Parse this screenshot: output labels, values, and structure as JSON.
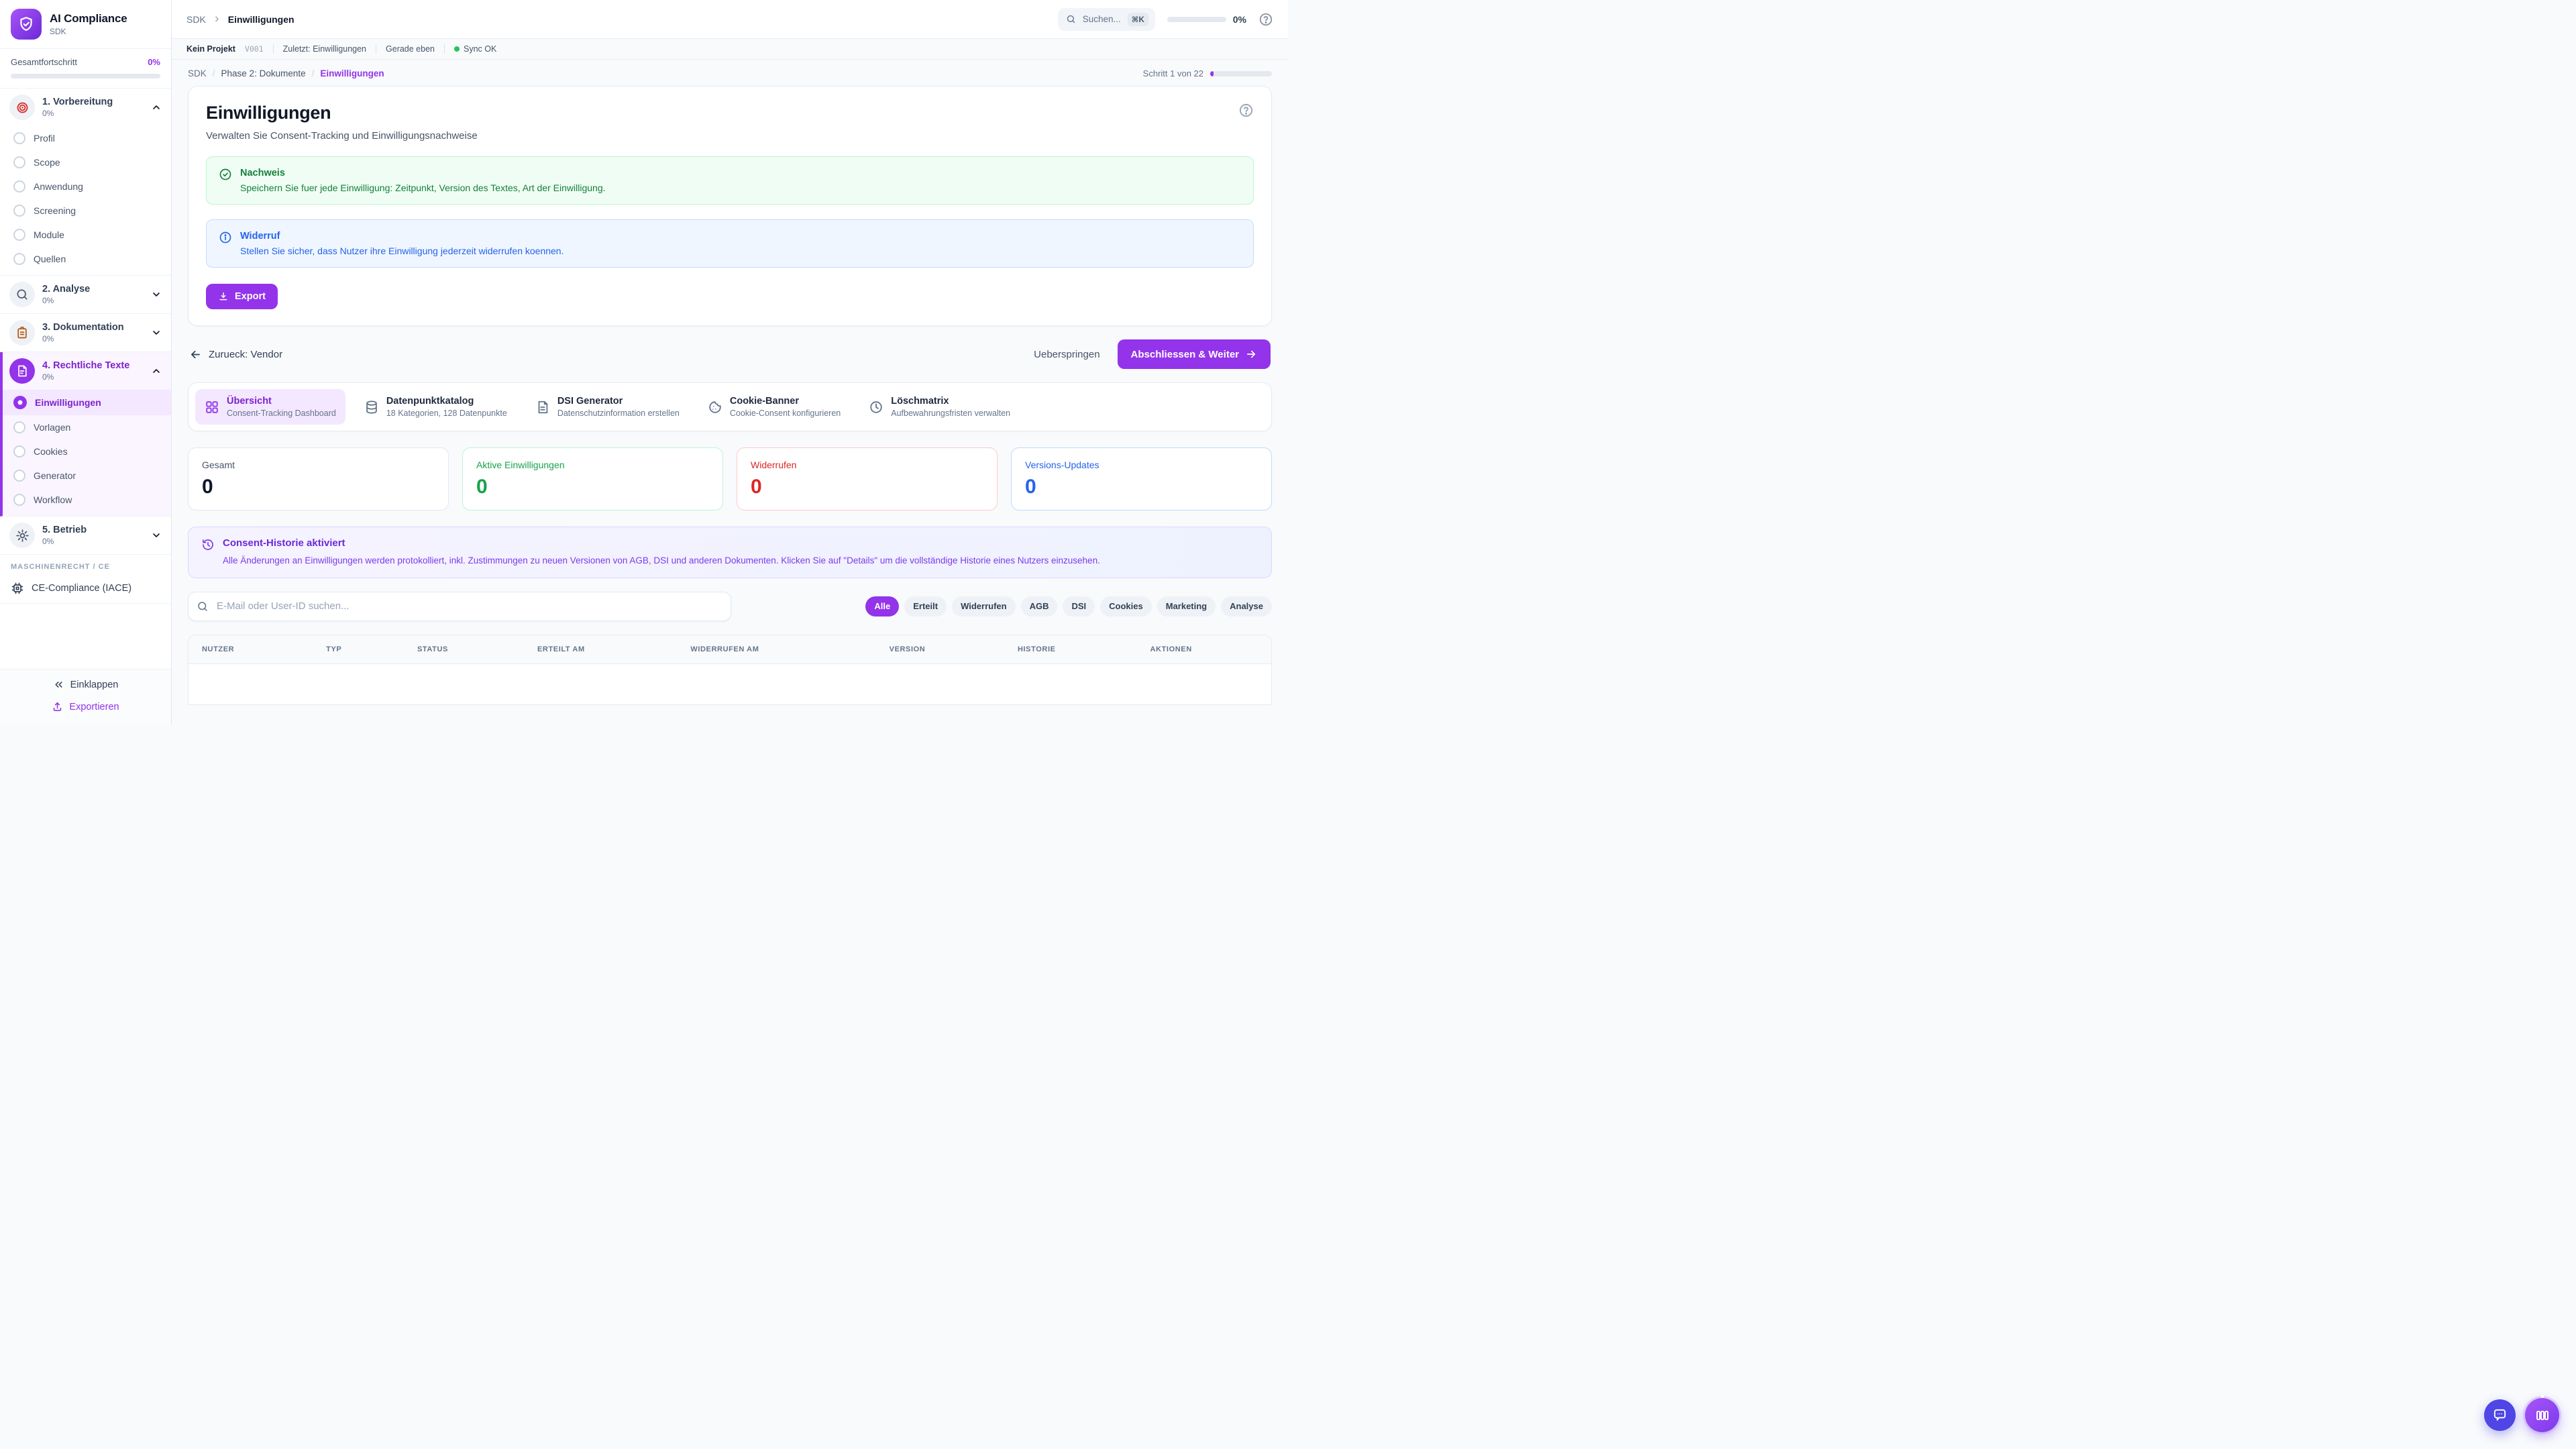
{
  "sidebar": {
    "app_title": "AI Compliance",
    "app_subtitle": "SDK",
    "progress_label": "Gesamtfortschritt",
    "progress_value": "0%",
    "sections": [
      {
        "title": "1. Vorbereitung",
        "pct": "0%",
        "icon": "target-icon",
        "items": [
          {
            "label": "Profil"
          },
          {
            "label": "Scope"
          },
          {
            "label": "Anwendung"
          },
          {
            "label": "Screening"
          },
          {
            "label": "Module"
          },
          {
            "label": "Quellen"
          }
        ]
      },
      {
        "title": "2. Analyse",
        "pct": "0%",
        "icon": "magnifier-icon"
      },
      {
        "title": "3. Dokumentation",
        "pct": "0%",
        "icon": "clipboard-icon"
      },
      {
        "title": "4. Rechtliche Texte",
        "pct": "0%",
        "icon": "memo-icon",
        "items": [
          {
            "label": "Einwilligungen",
            "active": true
          },
          {
            "label": "Vorlagen"
          },
          {
            "label": "Cookies"
          },
          {
            "label": "Generator"
          },
          {
            "label": "Workflow"
          }
        ]
      },
      {
        "title": "5. Betrieb",
        "pct": "0%",
        "icon": "gear-icon"
      }
    ],
    "group_label": "MASCHINENRECHT / CE",
    "ce_item_label": "CE-Compliance (IACE)",
    "collapse_label": "Einklappen",
    "export_label": "Exportieren"
  },
  "topbar": {
    "breadcrumb_root": "SDK",
    "breadcrumb_current": "Einwilligungen",
    "search_placeholder": "Suchen...",
    "search_shortcut": "⌘K",
    "progress_value": "0%"
  },
  "statusbar": {
    "project": "Kein Projekt",
    "version": "V001",
    "last_label": "Zuletzt: Einwilligungen",
    "time": "Gerade eben",
    "sync": "Sync OK"
  },
  "breadcrumbs": {
    "root": "SDK",
    "section": "Phase 2: Dokumente",
    "current": "Einwilligungen",
    "step_label": "Schritt 1 von 22"
  },
  "page": {
    "title": "Einwilligungen",
    "subtitle": "Verwalten Sie Consent-Tracking und Einwilligungsnachweise",
    "alert_success": {
      "title": "Nachweis",
      "text": "Speichern Sie fuer jede Einwilligung: Zeitpunkt, Version des Textes, Art der Einwilligung."
    },
    "alert_info": {
      "title": "Widerruf",
      "text": "Stellen Sie sicher, dass Nutzer ihre Einwilligung jederzeit widerrufen koennen."
    },
    "export_label": "Export"
  },
  "wizard": {
    "back_label": "Zurueck: Vendor",
    "skip_label": "Ueberspringen",
    "next_label": "Abschliessen & Weiter"
  },
  "tabs": [
    {
      "title": "Übersicht",
      "subtitle": "Consent-Tracking Dashboard",
      "icon": "grid-icon",
      "active": true
    },
    {
      "title": "Datenpunktkatalog",
      "subtitle": "18 Kategorien, 128 Datenpunkte",
      "icon": "database-icon"
    },
    {
      "title": "DSI Generator",
      "subtitle": "Datenschutzinformation erstellen",
      "icon": "file-icon"
    },
    {
      "title": "Cookie-Banner",
      "subtitle": "Cookie-Consent konfigurieren",
      "icon": "cookie-icon"
    },
    {
      "title": "Löschmatrix",
      "subtitle": "Aufbewahrungsfristen verwalten",
      "icon": "clock-icon"
    }
  ],
  "stats": [
    {
      "label": "Gesamt",
      "value": "0",
      "color": "default"
    },
    {
      "label": "Aktive Einwilligungen",
      "value": "0",
      "color": "green"
    },
    {
      "label": "Widerrufen",
      "value": "0",
      "color": "red"
    },
    {
      "label": "Versions-Updates",
      "value": "0",
      "color": "blue"
    }
  ],
  "history_banner": {
    "title": "Consent-Historie aktiviert",
    "text": "Alle Änderungen an Einwilligungen werden protokolliert, inkl. Zustimmungen zu neuen Versionen von AGB, DSI und anderen Dokumenten. Klicken Sie auf \"Details\" um die vollständige Historie eines Nutzers einzusehen."
  },
  "search": {
    "placeholder": "E-Mail oder User-ID suchen..."
  },
  "filters": [
    {
      "label": "Alle",
      "active": true
    },
    {
      "label": "Erteilt"
    },
    {
      "label": "Widerrufen"
    },
    {
      "label": "AGB"
    },
    {
      "label": "DSI"
    },
    {
      "label": "Cookies"
    },
    {
      "label": "Marketing"
    },
    {
      "label": "Analyse"
    }
  ],
  "table": {
    "columns": [
      "NUTZER",
      "TYP",
      "STATUS",
      "ERTEILT AM",
      "WIDERRUFEN AM",
      "VERSION",
      "HISTORIE",
      "AKTIONEN"
    ]
  },
  "colors": {
    "primary": "#9333ea",
    "success": "#16a34a",
    "danger": "#dc2626",
    "info": "#2563eb",
    "sync_ok": "#22c55e"
  }
}
